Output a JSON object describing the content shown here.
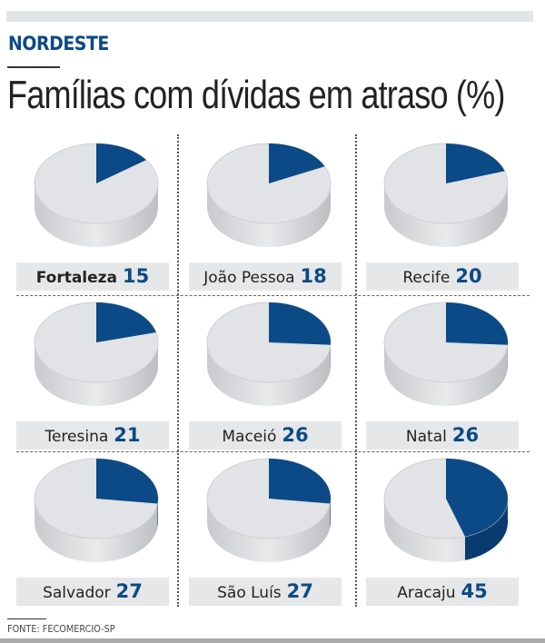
{
  "header": {
    "kicker": "NORDESTE",
    "title": "Famílias com dívidas em atraso (%)"
  },
  "source": "FONTE: FECOMERCIO-SP",
  "colors": {
    "accent": "#0b4a86",
    "pie_rest": "#e2e3e6",
    "label_bg": "#e6e7e9"
  },
  "chart_data": {
    "type": "pie",
    "title": "Famílias com dívidas em atraso (%)",
    "unit": "%",
    "categories": [
      "Fortaleza",
      "João Pessoa",
      "Recife",
      "Teresina",
      "Maceió",
      "Natal",
      "Salvador",
      "São Luís",
      "Aracaju"
    ],
    "values": [
      15,
      18,
      20,
      21,
      26,
      26,
      27,
      27,
      45
    ],
    "labels": [
      "15",
      "18",
      "20",
      "21",
      "26",
      "26",
      "27",
      "27",
      "45"
    ]
  }
}
